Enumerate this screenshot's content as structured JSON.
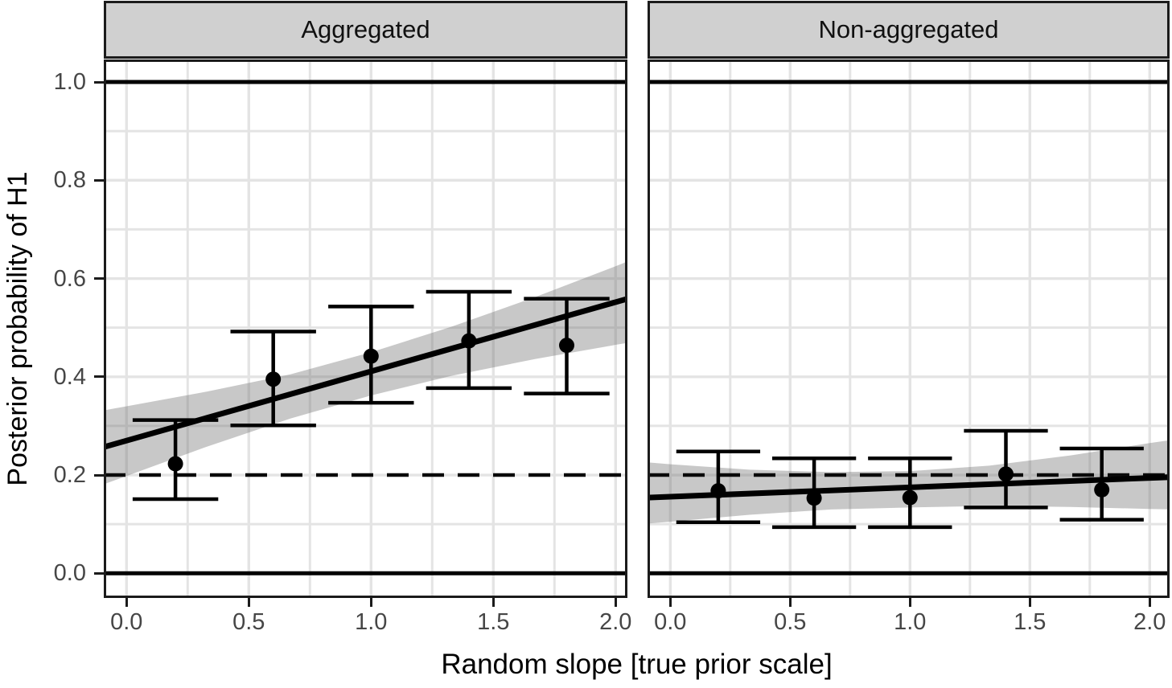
{
  "chart_data": {
    "type": "scatter",
    "title": "",
    "xlabel": "Random slope [true prior scale]",
    "ylabel": "Posterior probability of H1",
    "facet_labels": [
      "Aggregated",
      "Non-aggregated"
    ],
    "xlim": [
      -0.1,
      2.1
    ],
    "ylim": [
      -0.05,
      1.05
    ],
    "grid": true,
    "legend": false,
    "x_ticks": [
      0,
      0.5,
      1,
      1.5,
      2
    ],
    "x_tick_labels": [
      "0.0",
      "0.5",
      "1.0",
      "1.5",
      "2.0"
    ],
    "x_minor_ticks": [
      0.25,
      0.75,
      1.25,
      1.75
    ],
    "y_ticks": [
      0,
      0.2,
      0.4,
      0.6,
      0.8,
      1
    ],
    "y_tick_labels": [
      "0.0",
      "0.2",
      "0.4",
      "0.6",
      "0.8",
      "1.0"
    ],
    "y_minor_ticks": [
      0.1,
      0.3,
      0.5,
      0.7,
      0.9
    ],
    "reference_lines": {
      "solid_y": [
        0,
        1
      ],
      "dashed_y": [
        0.2
      ]
    },
    "errorbar_cap_halfwidth": 0.175,
    "panels": [
      {
        "label": "Aggregated",
        "points": {
          "x": [
            0.2,
            0.6,
            1.0,
            1.4,
            1.8
          ],
          "y": [
            0.223,
            0.395,
            0.442,
            0.473,
            0.464
          ],
          "ymin": [
            0.151,
            0.301,
            0.347,
            0.377,
            0.366
          ],
          "ymax": [
            0.312,
            0.492,
            0.543,
            0.573,
            0.559
          ]
        },
        "regression_line": {
          "x": [
            -0.1,
            2.1
          ],
          "y": [
            0.256,
            0.566
          ]
        },
        "ribbon": {
          "x": [
            -0.1,
            0.0,
            0.33,
            0.67,
            1.0,
            1.33,
            1.67,
            2.0,
            2.1
          ],
          "lo": [
            0.18,
            0.198,
            0.258,
            0.315,
            0.362,
            0.402,
            0.436,
            0.465,
            0.473
          ],
          "hi": [
            0.331,
            0.34,
            0.37,
            0.405,
            0.45,
            0.502,
            0.562,
            0.625,
            0.645
          ]
        }
      },
      {
        "label": "Non-aggregated",
        "points": {
          "x": [
            0.2,
            0.6,
            1.0,
            1.4,
            1.8
          ],
          "y": [
            0.168,
            0.153,
            0.154,
            0.202,
            0.17
          ],
          "ymin": [
            0.104,
            0.094,
            0.094,
            0.134,
            0.109
          ],
          "ymax": [
            0.248,
            0.234,
            0.234,
            0.29,
            0.254
          ]
        },
        "regression_line": {
          "x": [
            -0.1,
            2.1
          ],
          "y": [
            0.154,
            0.196
          ]
        },
        "ribbon": {
          "x": [
            -0.1,
            0.0,
            0.33,
            0.67,
            1.0,
            1.33,
            1.67,
            2.0,
            2.1
          ],
          "lo": [
            0.101,
            0.105,
            0.119,
            0.13,
            0.134,
            0.137,
            0.135,
            0.131,
            0.13
          ],
          "hi": [
            0.226,
            0.222,
            0.211,
            0.206,
            0.208,
            0.219,
            0.24,
            0.265,
            0.272
          ]
        }
      }
    ],
    "colors": {
      "point": "#000000",
      "line": "#000000",
      "ribbon": "rgba(110,110,110,0.38)",
      "strip_bg": "#d0d0d0",
      "grid": "#e4e4e4",
      "tick_label": "#464646",
      "border": "#1b1b1b"
    }
  }
}
